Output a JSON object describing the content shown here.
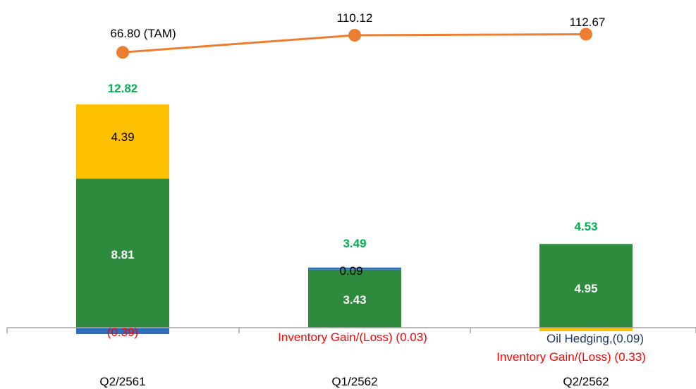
{
  "chart_data": {
    "type": "bar",
    "subtype": "stacked-bar-with-line",
    "categories": [
      "Q2/2561",
      "Q1/2562",
      "Q2/2562"
    ],
    "totals": [
      {
        "value": 12.82,
        "label": "12.82"
      },
      {
        "value": 3.49,
        "label": "3.49"
      },
      {
        "value": 4.53,
        "label": "4.53"
      }
    ],
    "series": [
      {
        "key": "green",
        "color": "#2E8B3E",
        "values": [
          8.81,
          3.43,
          4.95
        ],
        "labels": [
          "8.81",
          "3.43",
          "4.95"
        ],
        "label_color": "#ffffff"
      },
      {
        "key": "yellow",
        "color": "#FFC000",
        "values": [
          4.39,
          0,
          -0.09
        ],
        "labels": [
          "4.39",
          "",
          "Oil Hedging,(0.09)"
        ],
        "label_color": "#000000",
        "label_colors": [
          "#000000",
          "#000000",
          "#1F3864"
        ]
      },
      {
        "key": "blue",
        "color": "#2F6EBA",
        "values": [
          -0.39,
          0.09,
          0
        ],
        "labels": [
          "(0.39)",
          "0.09",
          ""
        ],
        "label_colors": [
          "#FF0000",
          "#000000",
          "#000000"
        ]
      }
    ],
    "inventory_labels": [
      "",
      "Inventory Gain/(Loss) (0.03)",
      "Inventory Gain/(Loss) (0.33)"
    ],
    "line": {
      "color": "#ED7D31",
      "values": [
        66.8,
        110.12,
        112.67
      ],
      "labels": [
        "66.80 (TAM)",
        "110.12",
        "112.67"
      ],
      "ylim": [
        0,
        120
      ]
    },
    "ylim": [
      -0.5,
      14
    ],
    "grid": false,
    "colors": {
      "total_label": "#00B050",
      "axis": "#A6A6A6",
      "negative_label": "#FF0000"
    }
  }
}
